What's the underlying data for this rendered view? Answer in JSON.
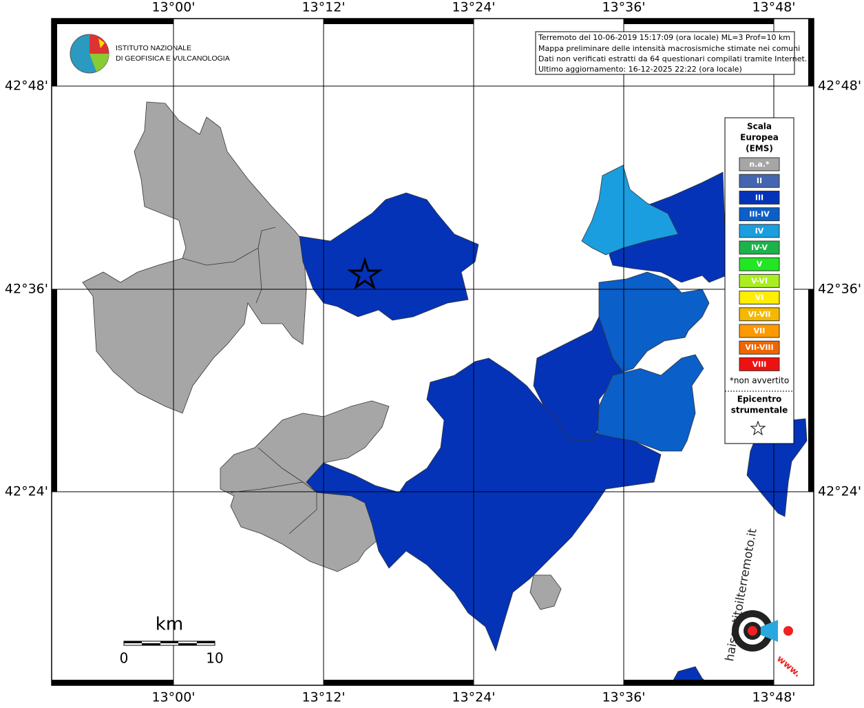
{
  "logo": {
    "line1": "ISTITUTO NAZIONALE",
    "line2": "DI GEOFISICA E VULCANOLOGIA"
  },
  "info": [
    "Terremoto del 10-06-2019 15:17:09 (ora locale) ML=3 Prof=10 km",
    "Mappa preliminare delle intensità macrosismiche stimate nei comuni",
    "Dati non verificati estratti da 64 questionari compilati tramite Internet.",
    "Ultimo aggiornamento: 16-12-2025 22:22 (ora locale)"
  ],
  "longitude_labels": [
    "13°00'",
    "13°12'",
    "13°24'",
    "13°36'",
    "13°48'"
  ],
  "latitude_labels": [
    "42°48'",
    "42°36'",
    "42°24'"
  ],
  "legend": {
    "title": [
      "Scala",
      "Europea",
      "(EMS)"
    ],
    "items": [
      {
        "label": "n.a.*",
        "color": "#a6a6a6"
      },
      {
        "label": "II",
        "color": "#4466b0"
      },
      {
        "label": "III",
        "color": "#0433b8"
      },
      {
        "label": "III-IV",
        "color": "#0a5fc8"
      },
      {
        "label": "IV",
        "color": "#1a9ee0"
      },
      {
        "label": "IV-V",
        "color": "#1db24a"
      },
      {
        "label": "V",
        "color": "#22e622"
      },
      {
        "label": "V-VI",
        "color": "#aaee22"
      },
      {
        "label": "VI",
        "color": "#ffee00"
      },
      {
        "label": "VI-VII",
        "color": "#f5b800"
      },
      {
        "label": "VII",
        "color": "#ff9900"
      },
      {
        "label": "VII-VIII",
        "color": "#ee6600"
      },
      {
        "label": "VIII",
        "color": "#ee1111"
      }
    ],
    "note": "*non avvertito",
    "epicenter": [
      "Epicentro",
      "strumentale"
    ]
  },
  "scalebar": {
    "unit": "km",
    "start": "0",
    "end": "10"
  },
  "site_logo": {
    "url": "haisentitoilterremoto.it",
    "prefix": "www."
  }
}
